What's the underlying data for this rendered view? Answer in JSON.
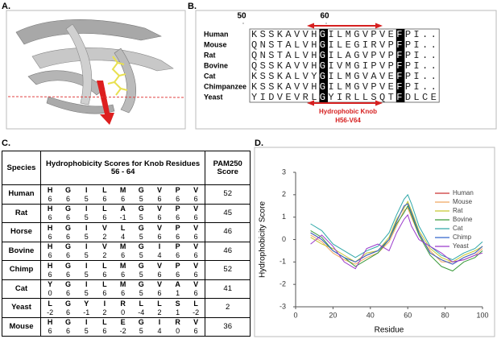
{
  "panel_a": {
    "label": "A."
  },
  "panel_b": {
    "label": "B.",
    "ruler": [
      50,
      60
    ],
    "species": [
      "Human",
      "Mouse",
      "Rat",
      "Bovine",
      "Cat",
      "Chimpanzee",
      "Yeast"
    ],
    "sequences": [
      "KSSKAVVHGILMGVPVEFPI..",
      "QNSTALVHGILEGIRVPFPI..",
      "QNSTALVHGILAGVPVPFPI..",
      "QSSKAVVHGIVMGIPVPFPI..",
      "KSSKALVYGILMGVAVEFPI..",
      "KSSKAVVHGILMGVPVEFPI..",
      "YIDVEVRLGYIRLLSQTFDLCE"
    ],
    "annotation": [
      "Hydrophobic Knob",
      "H56-V64"
    ]
  },
  "panel_c": {
    "label": "C.",
    "header": [
      "Species",
      "Hydrophobicity Scores for Knob Residues 56 - 64",
      "PAM250 Score"
    ],
    "rows": [
      {
        "species": "Human",
        "residues": [
          "H",
          "G",
          "I",
          "L",
          "M",
          "G",
          "V",
          "P",
          "V"
        ],
        "scores": [
          6,
          6,
          5,
          6,
          6,
          5,
          6,
          6,
          6
        ],
        "pam250": 52
      },
      {
        "species": "Rat",
        "residues": [
          "H",
          "G",
          "I",
          "L",
          "A",
          "G",
          "V",
          "P",
          "V"
        ],
        "scores": [
          6,
          6,
          5,
          6,
          -1,
          5,
          6,
          6,
          6
        ],
        "pam250": 45
      },
      {
        "species": "Horse",
        "residues": [
          "H",
          "G",
          "I",
          "V",
          "L",
          "G",
          "V",
          "P",
          "V"
        ],
        "scores": [
          6,
          6,
          5,
          2,
          4,
          5,
          6,
          6,
          6
        ],
        "pam250": 46
      },
      {
        "species": "Bovine",
        "residues": [
          "H",
          "G",
          "I",
          "V",
          "M",
          "G",
          "I",
          "P",
          "V"
        ],
        "scores": [
          6,
          6,
          5,
          2,
          6,
          5,
          4,
          6,
          6
        ],
        "pam250": 46
      },
      {
        "species": "Chimp",
        "residues": [
          "H",
          "G",
          "I",
          "L",
          "M",
          "G",
          "V",
          "P",
          "V"
        ],
        "scores": [
          6,
          6,
          5,
          6,
          6,
          5,
          6,
          6,
          6
        ],
        "pam250": 52
      },
      {
        "species": "Cat",
        "residues": [
          "Y",
          "G",
          "I",
          "L",
          "M",
          "G",
          "V",
          "A",
          "V"
        ],
        "scores": [
          0,
          6,
          5,
          6,
          6,
          5,
          6,
          1,
          6
        ],
        "pam250": 41
      },
      {
        "species": "Yeast",
        "residues": [
          "L",
          "G",
          "Y",
          "I",
          "R",
          "L",
          "L",
          "S",
          "L"
        ],
        "scores": [
          -2,
          6,
          -1,
          2,
          0,
          -4,
          2,
          1,
          -2
        ],
        "pam250": 2
      },
      {
        "species": "Mouse",
        "residues": [
          "H",
          "G",
          "I",
          "L",
          "E",
          "G",
          "I",
          "R",
          "V"
        ],
        "scores": [
          6,
          6,
          5,
          6,
          -2,
          5,
          4,
          0,
          6
        ],
        "pam250": 36
      }
    ]
  },
  "panel_d": {
    "label": "D."
  },
  "chart_data": {
    "type": "line",
    "x_label": "Residue",
    "y_label": "Hydrophobicity Score",
    "x": [
      8,
      14,
      20,
      26,
      32,
      38,
      44,
      50,
      54,
      58,
      60,
      62,
      66,
      72,
      78,
      84,
      90,
      96,
      100
    ],
    "xlim": [
      0,
      100
    ],
    "xticks": [
      0,
      20,
      40,
      60,
      80,
      100
    ],
    "ylim": [
      -3,
      3
    ],
    "yticks": [
      -3,
      -2,
      -1,
      0,
      1,
      2,
      3
    ],
    "legend": "upper right",
    "series": [
      {
        "name": "Human",
        "color": "#cc3333",
        "values": [
          0.3,
          0,
          -0.5,
          -0.8,
          -1,
          -0.7,
          -0.5,
          0,
          0.8,
          1.5,
          1.6,
          1.2,
          0.3,
          -0.6,
          -0.9,
          -1.1,
          -0.8,
          -0.6,
          -0.3
        ]
      },
      {
        "name": "Mouse",
        "color": "#f0a860",
        "values": [
          0.2,
          -0.1,
          -0.6,
          -0.9,
          -1.1,
          -0.8,
          -0.6,
          -0.1,
          0.6,
          1.3,
          1.4,
          1,
          0.2,
          -0.5,
          -1,
          -1,
          -0.9,
          -0.7,
          -0.4
        ]
      },
      {
        "name": "Rat",
        "color": "#c8c830",
        "values": [
          0.1,
          -0.2,
          -0.4,
          -0.7,
          -1,
          -0.6,
          -0.5,
          0.1,
          0.9,
          1.4,
          1.7,
          1.3,
          0.4,
          -0.4,
          -0.8,
          -1,
          -0.7,
          -0.5,
          -0.3
        ]
      },
      {
        "name": "Bovine",
        "color": "#3a9a3a",
        "values": [
          0.4,
          0.1,
          -0.5,
          -0.8,
          -1.2,
          -0.9,
          -0.6,
          0,
          0.7,
          1.2,
          1.5,
          1.1,
          0.2,
          -0.7,
          -1.2,
          -1.4,
          -1,
          -0.8,
          -0.5
        ]
      },
      {
        "name": "Cat",
        "color": "#30a8a8",
        "values": [
          0.7,
          0.4,
          -0.2,
          -0.5,
          -0.8,
          -0.5,
          -0.3,
          0.3,
          1.1,
          1.8,
          2,
          1.6,
          0.6,
          -0.3,
          -0.7,
          -0.9,
          -0.6,
          -0.4,
          -0.1
        ]
      },
      {
        "name": "Chimp",
        "color": "#3366cc",
        "values": [
          0.3,
          0,
          -0.5,
          -0.8,
          -1,
          -0.7,
          -0.5,
          0,
          0.8,
          1.5,
          1.6,
          1.2,
          0.3,
          -0.6,
          -0.9,
          -1.1,
          -0.8,
          -0.6,
          -0.3
        ]
      },
      {
        "name": "Yeast",
        "color": "#9a3acc",
        "values": [
          -0.2,
          0.2,
          -0.3,
          -1,
          -1.3,
          -0.4,
          -0.2,
          -0.5,
          0.3,
          0.9,
          1.1,
          0.6,
          0,
          -0.3,
          -0.6,
          -1,
          -0.9,
          -0.7,
          -0.6
        ]
      }
    ]
  }
}
